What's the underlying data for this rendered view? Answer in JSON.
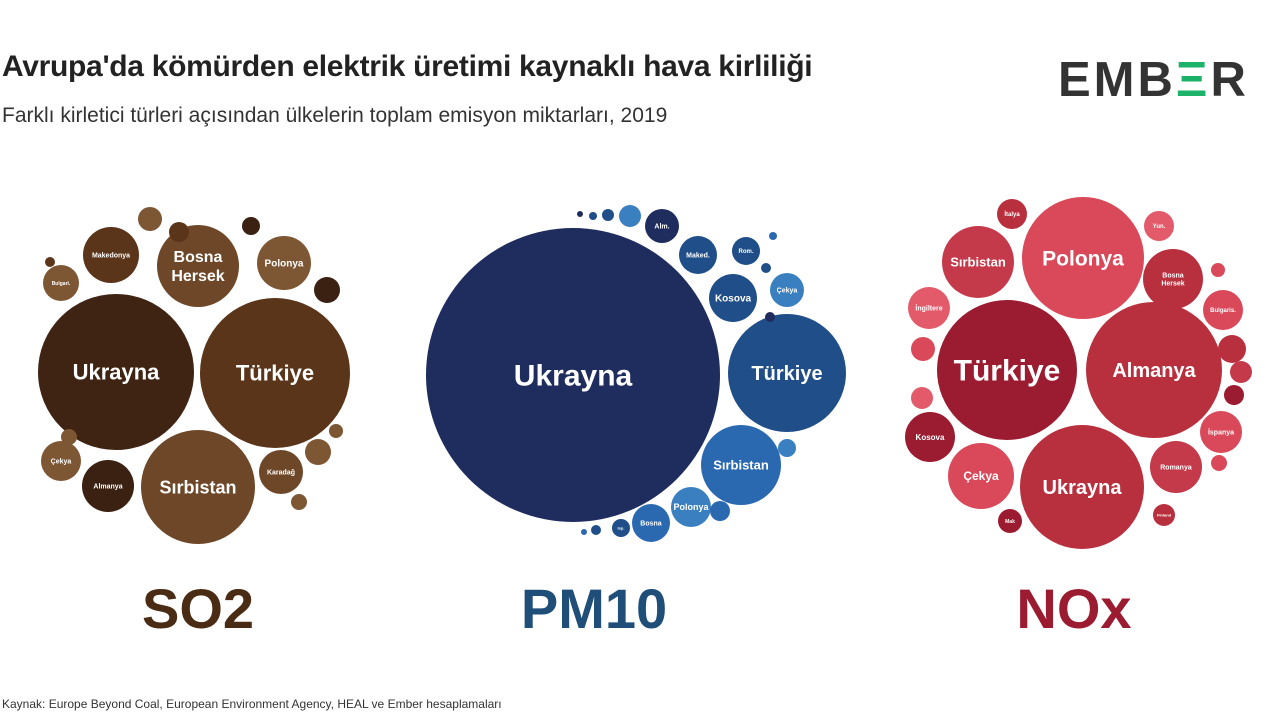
{
  "title": "Avrupa'da kömürden elektrik üretimi kaynaklı hava kirliliği",
  "subtitle": "Farklı kirletici türleri açısından ülkelerin toplam emisyon miktarları, 2019",
  "logo": {
    "left": "EMB",
    "mid": "Ξ",
    "right": "R",
    "accent_color": "#1db26a"
  },
  "source": "Kaynak: Europe Beyond Coal, European Environment Agency, HEAL ve Ember hesaplamaları",
  "chart_data": [
    {
      "type": "bubble",
      "label": "SO2",
      "color": "#4a2c14",
      "bubbles": [
        {
          "label": "Ukrayna"
        },
        {
          "label": "Türkiye"
        },
        {
          "label": "Sırbistan"
        },
        {
          "label": "Bosna\nHersek"
        },
        {
          "label": "Polonya"
        },
        {
          "label": "Makedonya"
        },
        {
          "label": "Çekya"
        },
        {
          "label": "Almanya"
        },
        {
          "label": "Karadağ"
        },
        {
          "label": "Bulgari."
        },
        {
          "label": ""
        },
        {
          "label": ""
        },
        {
          "label": ""
        },
        {
          "label": ""
        },
        {
          "label": ""
        },
        {
          "label": ""
        },
        {
          "label": ""
        },
        {
          "label": ""
        },
        {
          "label": ""
        }
      ]
    },
    {
      "type": "bubble",
      "label": "PM10",
      "color": "#1f4e79",
      "bubbles": [
        {
          "label": "Ukrayna"
        },
        {
          "label": "Türkiye"
        },
        {
          "label": "Sırbistan"
        },
        {
          "label": "Kosova"
        },
        {
          "label": "Çekya"
        },
        {
          "label": "Maked."
        },
        {
          "label": "Alm."
        },
        {
          "label": "Rom."
        },
        {
          "label": "Polonya"
        },
        {
          "label": "Bosna"
        },
        {
          "label": "Isp."
        },
        {
          "label": ""
        },
        {
          "label": ""
        },
        {
          "label": ""
        },
        {
          "label": ""
        },
        {
          "label": ""
        },
        {
          "label": ""
        },
        {
          "label": ""
        },
        {
          "label": ""
        },
        {
          "label": ""
        },
        {
          "label": ""
        },
        {
          "label": ""
        }
      ]
    },
    {
      "type": "bubble",
      "label": "NOx",
      "color": "#9b1b30",
      "bubbles": [
        {
          "label": "Türkiye"
        },
        {
          "label": "Almanya"
        },
        {
          "label": "Ukrayna"
        },
        {
          "label": "Polonya"
        },
        {
          "label": "Sırbistan"
        },
        {
          "label": "Çekya"
        },
        {
          "label": "Kosova"
        },
        {
          "label": "Romanya"
        },
        {
          "label": "Bosna\nHersek"
        },
        {
          "label": "İspanya"
        },
        {
          "label": "İngiltere"
        },
        {
          "label": "Bulgaris."
        },
        {
          "label": "Yun."
        },
        {
          "label": "İtalya"
        },
        {
          "label": "Mak"
        },
        {
          "label": "Finland"
        },
        {
          "label": ""
        },
        {
          "label": ""
        },
        {
          "label": ""
        },
        {
          "label": ""
        },
        {
          "label": ""
        },
        {
          "label": ""
        },
        {
          "label": ""
        }
      ]
    }
  ]
}
